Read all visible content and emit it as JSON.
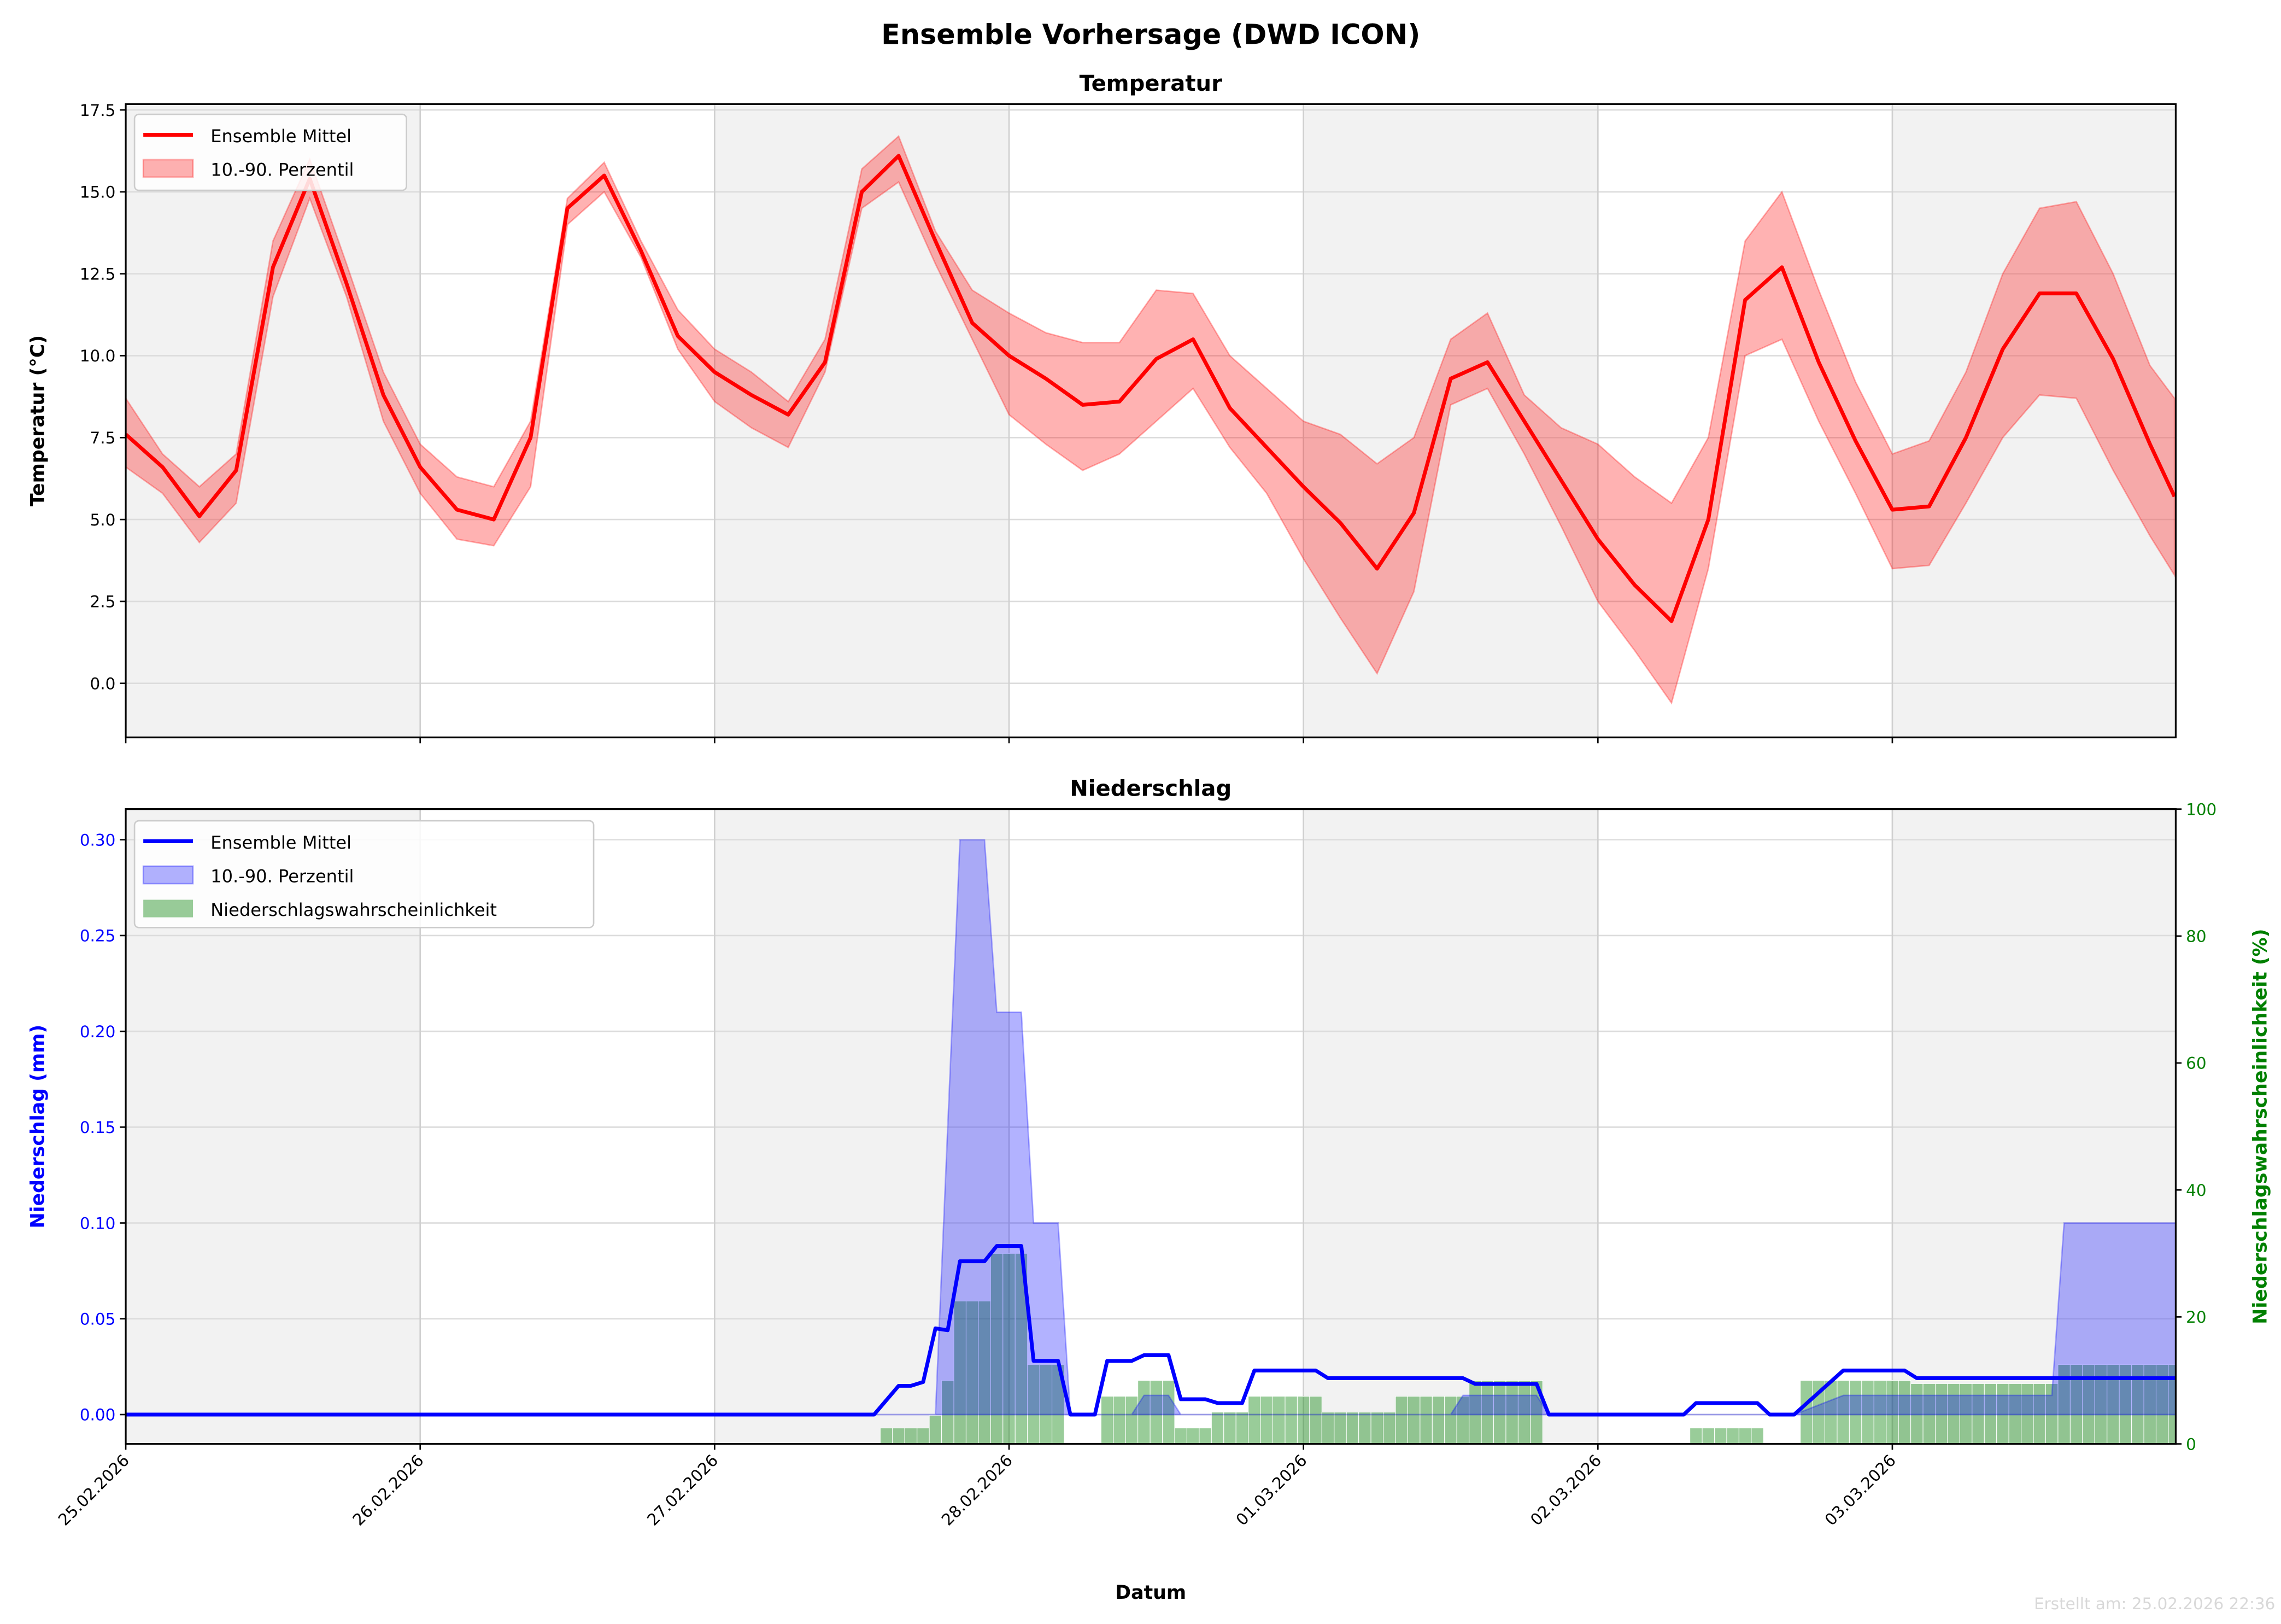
{
  "title": "Ensemble Vorhersage (DWD ICON)",
  "footer": "Erstellt am: 25.02.2026 22:36",
  "colors": {
    "temp": "#ff0000",
    "precip": "#0000ff",
    "prob": "#008000",
    "shade": "#f2f2f2"
  },
  "chart_data": [
    {
      "type": "line",
      "title": "Temperatur",
      "xlabel": "",
      "ylabel": "Temperatur (°C)",
      "x_unit": "hours since 25.02.2026 00:00",
      "xlim": [
        0,
        167.1
      ],
      "ylim": [
        -1.65,
        17.68
      ],
      "yticks": [
        0,
        2.5,
        5,
        7.5,
        10,
        12.5,
        15,
        17.5
      ],
      "ytick_labels": [
        "0.0",
        "2.5",
        "5.0",
        "7.5",
        "10.0",
        "12.5",
        "15.0",
        "17.5"
      ],
      "grid": true,
      "legend": {
        "placement": "top-left",
        "entries": [
          "Ensemble Mittel",
          "10.-90. Perzentil"
        ]
      },
      "x": [
        0,
        3,
        6,
        9,
        12,
        15,
        18,
        21,
        24,
        27,
        30,
        33,
        36,
        39,
        42,
        45,
        48,
        51,
        54,
        57,
        60,
        63,
        66,
        69,
        72,
        75,
        78,
        81,
        84,
        87,
        90,
        93,
        96,
        99,
        102,
        105,
        108,
        111,
        114,
        117,
        120,
        123,
        126,
        129,
        132,
        135,
        138,
        141,
        144,
        147,
        150,
        153,
        156,
        159,
        162,
        165,
        167
      ],
      "series": [
        {
          "name": "Ensemble Mittel",
          "values": [
            7.6,
            6.6,
            5.1,
            6.5,
            12.7,
            15.4,
            12.2,
            8.8,
            6.6,
            5.3,
            5.0,
            7.5,
            14.5,
            15.5,
            13.2,
            10.6,
            9.5,
            8.8,
            8.2,
            9.8,
            15.0,
            16.1,
            13.5,
            11.0,
            10.0,
            9.3,
            8.5,
            8.6,
            9.9,
            10.5,
            8.4,
            7.2,
            6.0,
            4.9,
            3.5,
            5.2,
            9.3,
            9.8,
            8.0,
            6.2,
            4.4,
            3.0,
            1.9,
            5.0,
            11.7,
            12.7,
            9.8,
            7.4,
            5.3,
            5.4,
            7.5,
            10.2,
            11.9,
            11.9,
            9.9,
            7.3,
            5.7
          ]
        },
        {
          "name": "P10",
          "values": [
            6.6,
            5.8,
            4.3,
            5.5,
            11.8,
            14.8,
            11.8,
            8.0,
            5.8,
            4.4,
            4.2,
            6.0,
            14.0,
            15.0,
            13.0,
            10.2,
            8.6,
            7.8,
            7.2,
            9.5,
            14.5,
            15.3,
            12.8,
            10.5,
            8.2,
            7.3,
            6.5,
            7.0,
            8.0,
            9.0,
            7.2,
            5.8,
            3.8,
            2.0,
            0.3,
            2.8,
            8.5,
            9.0,
            7.0,
            4.8,
            2.5,
            1.0,
            -0.6,
            3.5,
            10.0,
            10.5,
            8.0,
            5.8,
            3.5,
            3.6,
            5.5,
            7.5,
            8.8,
            8.7,
            6.5,
            4.5,
            3.3
          ]
        },
        {
          "name": "P90",
          "values": [
            8.7,
            7.0,
            6.0,
            7.0,
            13.5,
            16.0,
            12.8,
            9.5,
            7.3,
            6.3,
            6.0,
            8.0,
            14.8,
            15.9,
            13.5,
            11.4,
            10.2,
            9.5,
            8.6,
            10.5,
            15.7,
            16.7,
            13.8,
            12.0,
            11.3,
            10.7,
            10.4,
            10.4,
            12.0,
            11.9,
            10.0,
            9.0,
            8.0,
            7.6,
            6.7,
            7.5,
            10.5,
            11.3,
            8.8,
            7.8,
            7.3,
            6.3,
            5.5,
            7.5,
            13.5,
            15.0,
            12.0,
            9.2,
            7.0,
            7.4,
            9.5,
            12.5,
            14.5,
            14.7,
            12.5,
            9.7,
            8.7
          ]
        }
      ]
    },
    {
      "type": "line",
      "title": "Niederschlag",
      "xlabel": "Datum",
      "ylabel": "Niederschlag (mm)",
      "ylabel_right": "Niederschlagswahrscheinlichkeit (%)",
      "x_unit": "hours since 25.02.2026 00:00",
      "xlim": [
        0,
        167.1
      ],
      "ylim": [
        -0.0153,
        0.316
      ],
      "ylim_right": [
        0,
        100
      ],
      "yticks": [
        0,
        0.05,
        0.1,
        0.15,
        0.2,
        0.25,
        0.3
      ],
      "ytick_labels": [
        "0.00",
        "0.05",
        "0.10",
        "0.15",
        "0.20",
        "0.25",
        "0.30"
      ],
      "yticks_right": [
        0,
        20,
        40,
        60,
        80,
        100
      ],
      "ytick_labels_right": [
        "0",
        "20",
        "40",
        "60",
        "80",
        "100"
      ],
      "xticks": [
        0,
        24,
        48,
        72,
        96,
        120,
        144
      ],
      "xtick_labels": [
        "25.02.2026",
        "26.02.2026",
        "27.02.2026",
        "28.02.2026",
        "01.03.2026",
        "02.03.2026",
        "03.03.2026"
      ],
      "grid": true,
      "legend": {
        "placement": "top-left",
        "entries": [
          "Ensemble Mittel",
          "10.-90. Perzentil",
          "Niederschlagswahrscheinlichkeit"
        ]
      },
      "mean": [
        [
          0,
          0
        ],
        [
          61,
          0
        ],
        [
          63,
          0.015
        ],
        [
          64,
          0.015
        ],
        [
          65,
          0.017
        ],
        [
          66,
          0.045
        ],
        [
          67,
          0.044
        ],
        [
          68,
          0.08
        ],
        [
          70,
          0.08
        ],
        [
          71,
          0.088
        ],
        [
          73,
          0.088
        ],
        [
          74,
          0.028
        ],
        [
          76,
          0.028
        ],
        [
          77,
          0
        ],
        [
          79,
          0
        ],
        [
          80,
          0.028
        ],
        [
          82,
          0.028
        ],
        [
          83,
          0.031
        ],
        [
          85,
          0.031
        ],
        [
          86,
          0.008
        ],
        [
          88,
          0.008
        ],
        [
          89,
          0.006
        ],
        [
          91,
          0.006
        ],
        [
          92,
          0.023
        ],
        [
          97,
          0.023
        ],
        [
          98,
          0.019
        ],
        [
          109,
          0.019
        ],
        [
          110,
          0.016
        ],
        [
          115,
          0.016
        ],
        [
          116,
          0
        ],
        [
          127,
          0
        ],
        [
          128,
          0.006
        ],
        [
          133,
          0.006
        ],
        [
          134,
          0
        ],
        [
          136,
          0
        ],
        [
          140,
          0.023
        ],
        [
          145,
          0.023
        ],
        [
          146,
          0.019
        ],
        [
          167.1,
          0.019
        ]
      ],
      "p90": [
        [
          0,
          0
        ],
        [
          66,
          0
        ],
        [
          68,
          0.3
        ],
        [
          70,
          0.3
        ],
        [
          71,
          0.21
        ],
        [
          73,
          0.21
        ],
        [
          74,
          0.1
        ],
        [
          76,
          0.1
        ],
        [
          77,
          0
        ],
        [
          82,
          0
        ],
        [
          83,
          0.01
        ],
        [
          85,
          0.01
        ],
        [
          86,
          0
        ],
        [
          108,
          0
        ],
        [
          109,
          0.01
        ],
        [
          115,
          0.01
        ],
        [
          116,
          0
        ],
        [
          136,
          0
        ],
        [
          140,
          0.01
        ],
        [
          157,
          0.01
        ],
        [
          158,
          0.1
        ],
        [
          167.1,
          0.1
        ]
      ],
      "probability_pct": [
        [
          62,
          65,
          2.5
        ],
        [
          66,
          66,
          4.5
        ],
        [
          67,
          67,
          10
        ],
        [
          68,
          70,
          22.5
        ],
        [
          71,
          73,
          30
        ],
        [
          74,
          76,
          12.5
        ],
        [
          80,
          82,
          7.5
        ],
        [
          83,
          85,
          10
        ],
        [
          86,
          88,
          2.5
        ],
        [
          89,
          91,
          5
        ],
        [
          92,
          97,
          7.5
        ],
        [
          98,
          103,
          5
        ],
        [
          104,
          109,
          7.5
        ],
        [
          110,
          115,
          10
        ],
        [
          128,
          133,
          2.5
        ],
        [
          137,
          145,
          10
        ],
        [
          146,
          157,
          9.5
        ],
        [
          158,
          167,
          12.5
        ]
      ]
    }
  ]
}
